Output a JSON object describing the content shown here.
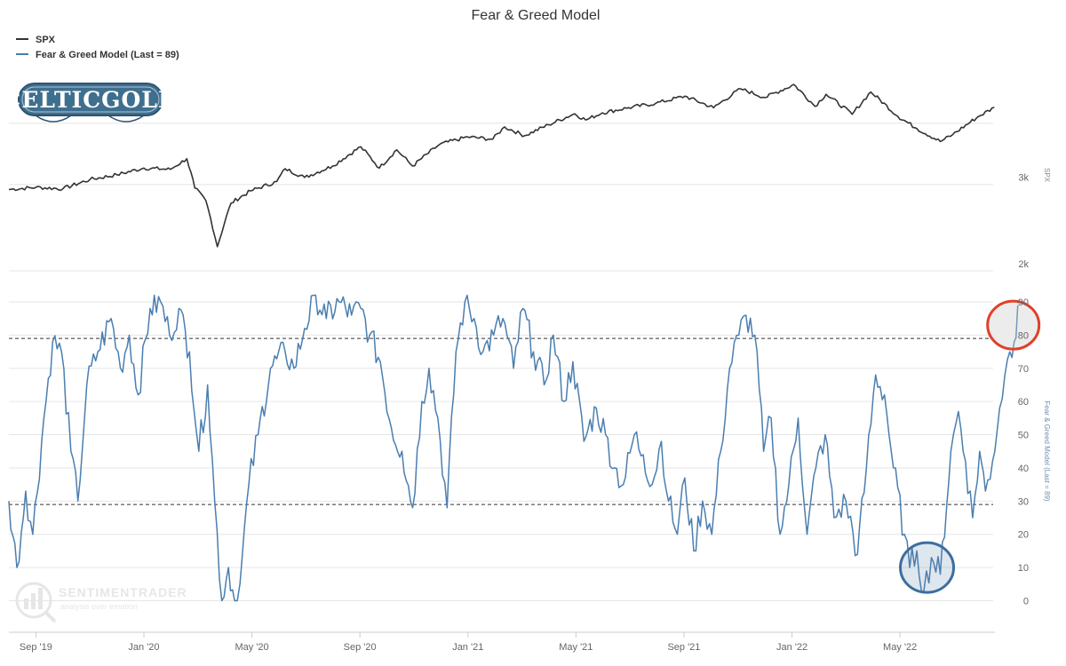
{
  "chart_data": {
    "type": "line",
    "title": "Fear & Greed Model",
    "x_labels": [
      "Sep '19",
      "Jan '20",
      "May '20",
      "Sep '20",
      "Jan '21",
      "May '21",
      "Sep '21",
      "Jan '22",
      "May '22"
    ],
    "x_range": [
      "2019-08",
      "2022-08"
    ],
    "legend": {
      "placement": "top-left"
    },
    "panels": [
      {
        "name": "SPX",
        "axis_title": "SPX",
        "scale": "log",
        "ylim": [
          2000,
          4900
        ],
        "y_ticks": [
          "2k",
          "3k"
        ],
        "y_tick_values": [
          2000,
          3000
        ],
        "series": [
          {
            "name": "SPX",
            "color": "#333333",
            "points": [
              [
                "2019-08-01",
                2930
              ],
              [
                "2019-09-01",
                2960
              ],
              [
                "2019-10-01",
                2940
              ],
              [
                "2019-11-01",
                3070
              ],
              [
                "2019-12-01",
                3140
              ],
              [
                "2020-01-01",
                3240
              ],
              [
                "2020-01-31",
                3220
              ],
              [
                "2020-02-19",
                3385
              ],
              [
                "2020-02-28",
                2950
              ],
              [
                "2020-03-10",
                2780
              ],
              [
                "2020-03-23",
                2240
              ],
              [
                "2020-04-08",
                2750
              ],
              [
                "2020-04-30",
                2910
              ],
              [
                "2020-05-29",
                3040
              ],
              [
                "2020-06-08",
                3230
              ],
              [
                "2020-06-30",
                3100
              ],
              [
                "2020-07-31",
                3270
              ],
              [
                "2020-09-02",
                3580
              ],
              [
                "2020-09-23",
                3240
              ],
              [
                "2020-10-12",
                3530
              ],
              [
                "2020-10-30",
                3270
              ],
              [
                "2020-11-30",
                3620
              ],
              [
                "2020-12-31",
                3750
              ],
              [
                "2021-01-29",
                3710
              ],
              [
                "2021-02-12",
                3930
              ],
              [
                "2021-03-04",
                3770
              ],
              [
                "2021-03-31",
                3970
              ],
              [
                "2021-04-30",
                4180
              ],
              [
                "2021-05-12",
                4060
              ],
              [
                "2021-05-31",
                4200
              ],
              [
                "2021-06-30",
                4300
              ],
              [
                "2021-07-30",
                4390
              ],
              [
                "2021-09-02",
                4540
              ],
              [
                "2021-10-04",
                4300
              ],
              [
                "2021-11-04",
                4700
              ],
              [
                "2021-12-01",
                4510
              ],
              [
                "2021-12-31",
                4770
              ],
              [
                "2022-01-03",
                4796
              ],
              [
                "2022-01-27",
                4330
              ],
              [
                "2022-02-09",
                4580
              ],
              [
                "2022-03-08",
                4170
              ],
              [
                "2022-03-29",
                4630
              ],
              [
                "2022-04-29",
                4130
              ],
              [
                "2022-05-20",
                3900
              ],
              [
                "2022-06-16",
                3670
              ],
              [
                "2022-06-30",
                3790
              ],
              [
                "2022-07-29",
                4130
              ],
              [
                "2022-08-16",
                4305
              ]
            ]
          }
        ]
      },
      {
        "name": "Fear & Greed Model",
        "axis_title": "Fear & Greed Model (Last = 89)",
        "ylim": [
          -2,
          94
        ],
        "y_ticks": [
          "0",
          "10",
          "20",
          "30",
          "40",
          "50",
          "60",
          "70",
          "80",
          "90"
        ],
        "y_tick_values": [
          0,
          10,
          20,
          30,
          40,
          50,
          60,
          70,
          80,
          90
        ],
        "reference_lines": [
          79,
          29
        ],
        "series": [
          {
            "name": "Fear & Greed Model (Last = 89)",
            "color": "#4a7eb0",
            "last": 89,
            "points": [
              [
                "2019-08-01",
                30
              ],
              [
                "2019-08-10",
                10
              ],
              [
                "2019-08-20",
                33
              ],
              [
                "2019-08-28",
                20
              ],
              [
                "2019-09-10",
                55
              ],
              [
                "2019-09-20",
                78
              ],
              [
                "2019-09-30",
                75
              ],
              [
                "2019-10-10",
                45
              ],
              [
                "2019-10-18",
                30
              ],
              [
                "2019-10-28",
                65
              ],
              [
                "2019-11-10",
                75
              ],
              [
                "2019-11-25",
                85
              ],
              [
                "2019-12-05",
                70
              ],
              [
                "2019-12-15",
                80
              ],
              [
                "2019-12-25",
                62
              ],
              [
                "2020-01-08",
                88
              ],
              [
                "2020-01-20",
                90
              ],
              [
                "2020-01-30",
                80
              ],
              [
                "2020-02-10",
                88
              ],
              [
                "2020-02-22",
                75
              ],
              [
                "2020-03-02",
                45
              ],
              [
                "2020-03-12",
                65
              ],
              [
                "2020-03-20",
                30
              ],
              [
                "2020-03-28",
                0
              ],
              [
                "2020-04-05",
                10
              ],
              [
                "2020-04-12",
                0
              ],
              [
                "2020-04-18",
                5
              ],
              [
                "2020-04-28",
                35
              ],
              [
                "2020-05-08",
                50
              ],
              [
                "2020-05-22",
                70
              ],
              [
                "2020-06-08",
                75
              ],
              [
                "2020-06-18",
                70
              ],
              [
                "2020-06-30",
                82
              ],
              [
                "2020-07-12",
                92
              ],
              [
                "2020-07-24",
                85
              ],
              [
                "2020-08-08",
                90
              ],
              [
                "2020-08-22",
                86
              ],
              [
                "2020-09-02",
                88
              ],
              [
                "2020-09-12",
                80
              ],
              [
                "2020-09-24",
                72
              ],
              [
                "2020-10-06",
                52
              ],
              [
                "2020-10-18",
                45
              ],
              [
                "2020-10-30",
                28
              ],
              [
                "2020-11-10",
                60
              ],
              [
                "2020-11-18",
                70
              ],
              [
                "2020-11-28",
                55
              ],
              [
                "2020-12-08",
                28
              ],
              [
                "2020-12-18",
                75
              ],
              [
                "2020-12-28",
                90
              ],
              [
                "2021-01-08",
                85
              ],
              [
                "2021-01-18",
                75
              ],
              [
                "2021-01-30",
                80
              ],
              [
                "2021-02-10",
                85
              ],
              [
                "2021-02-22",
                70
              ],
              [
                "2021-03-02",
                88
              ],
              [
                "2021-03-14",
                75
              ],
              [
                "2021-03-26",
                65
              ],
              [
                "2021-04-06",
                80
              ],
              [
                "2021-04-18",
                60
              ],
              [
                "2021-04-28",
                72
              ],
              [
                "2021-05-10",
                48
              ],
              [
                "2021-05-24",
                58
              ],
              [
                "2021-06-04",
                50
              ],
              [
                "2021-06-14",
                40
              ],
              [
                "2021-06-24",
                35
              ],
              [
                "2021-07-06",
                50
              ],
              [
                "2021-07-16",
                44
              ],
              [
                "2021-07-26",
                35
              ],
              [
                "2021-08-06",
                48
              ],
              [
                "2021-08-14",
                30
              ],
              [
                "2021-08-24",
                20
              ],
              [
                "2021-09-02",
                37
              ],
              [
                "2021-09-12",
                15
              ],
              [
                "2021-09-22",
                30
              ],
              [
                "2021-10-02",
                20
              ],
              [
                "2021-10-12",
                45
              ],
              [
                "2021-10-22",
                70
              ],
              [
                "2021-11-02",
                80
              ],
              [
                "2021-11-10",
                86
              ],
              [
                "2021-11-20",
                80
              ],
              [
                "2021-11-30",
                45
              ],
              [
                "2021-12-08",
                55
              ],
              [
                "2021-12-18",
                20
              ],
              [
                "2021-12-28",
                35
              ],
              [
                "2022-01-08",
                55
              ],
              [
                "2022-01-18",
                20
              ],
              [
                "2022-01-28",
                40
              ],
              [
                "2022-02-08",
                50
              ],
              [
                "2022-02-18",
                25
              ],
              [
                "2022-03-01",
                30
              ],
              [
                "2022-03-14",
                14
              ],
              [
                "2022-03-24",
                40
              ],
              [
                "2022-04-04",
                68
              ],
              [
                "2022-04-14",
                62
              ],
              [
                "2022-04-24",
                40
              ],
              [
                "2022-05-06",
                20
              ],
              [
                "2022-05-12",
                10
              ],
              [
                "2022-05-20",
                15
              ],
              [
                "2022-05-28",
                3
              ],
              [
                "2022-06-06",
                13
              ],
              [
                "2022-06-16",
                8
              ],
              [
                "2022-06-28",
                45
              ],
              [
                "2022-07-06",
                57
              ],
              [
                "2022-07-14",
                42
              ],
              [
                "2022-07-22",
                25
              ],
              [
                "2022-07-30",
                45
              ],
              [
                "2022-08-06",
                33
              ],
              [
                "2022-08-14",
                42
              ],
              [
                "2022-08-22",
                58
              ],
              [
                "2022-08-28",
                68
              ],
              [
                "2022-09-03",
                75
              ],
              [
                "2022-09-08",
                78
              ],
              [
                "2022-09-12",
                89
              ]
            ]
          }
        ]
      }
    ],
    "annotations": [
      {
        "label": "greed-highlight-circle",
        "color": "#e0402a",
        "at": [
          "2022-09-08",
          83
        ]
      },
      {
        "label": "fear-highlight-circle",
        "color": "#3d6e9e",
        "at": [
          "2022-06-01",
          10
        ]
      }
    ]
  },
  "logos": {
    "celticgold": "CELTICGOLD",
    "sentimentrader": "SENTIMENTRADER",
    "sentimentrader_tagline": "analysis over emotion"
  },
  "colors": {
    "spx_line": "#333333",
    "fg_line": "#4a7eb0",
    "logo_bg": "#3f6f8f",
    "logo_frame": "#2c5470",
    "grid": "#e6e6e6"
  }
}
